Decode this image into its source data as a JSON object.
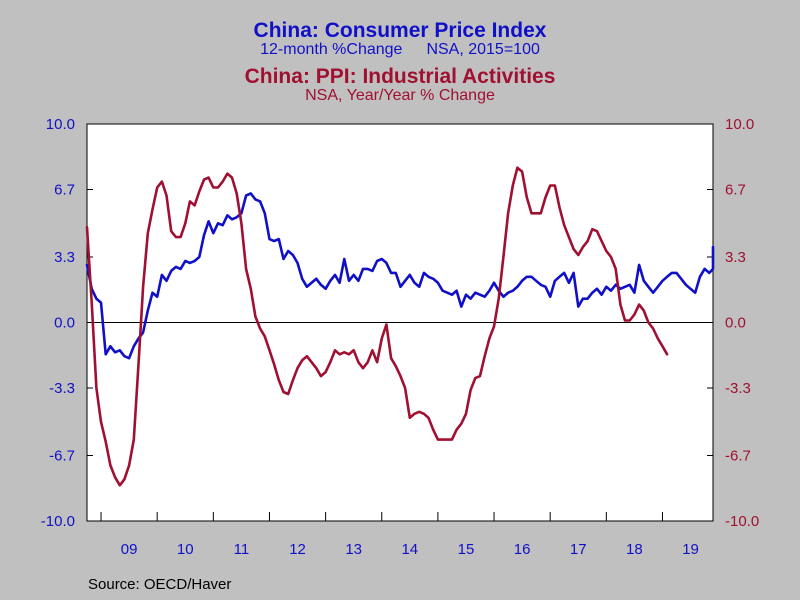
{
  "chart_data": {
    "type": "line",
    "title": "China: Consumer Price Index",
    "subtitle_left": "12-month %Change",
    "subtitle_right": "NSA, 2015=100",
    "title2": "China: PPI: Industrial Activities",
    "subtitle2": "NSA, Year/Year % Change",
    "source": "Source:  OECD/Haver",
    "ylim": [
      -10.0,
      10.0
    ],
    "yticks": [
      "10.0",
      "6.7",
      "3.3",
      "0.0",
      "-3.3",
      "-6.7",
      "-10.0"
    ],
    "ytick_values": [
      10.0,
      6.7,
      3.3,
      0.0,
      -3.3,
      -6.7,
      -10.0
    ],
    "x_categories": [
      "09",
      "10",
      "11",
      "12",
      "13",
      "14",
      "15",
      "16",
      "17",
      "18",
      "19"
    ],
    "x_start": 2008.75,
    "x_end": 2019.9,
    "grid": false,
    "series": [
      {
        "name": "China: Consumer Price Index",
        "color": "#1010c8",
        "axis": "left",
        "x_start": 2008.75,
        "step_months": 1,
        "values": [
          2.9,
          1.7,
          1.2,
          1.0,
          -1.6,
          -1.2,
          -1.5,
          -1.4,
          -1.7,
          -1.8,
          -1.2,
          -0.8,
          -0.5,
          0.6,
          1.5,
          1.3,
          2.4,
          2.1,
          2.6,
          2.8,
          2.7,
          3.1,
          3.0,
          3.1,
          3.3,
          4.4,
          5.1,
          4.5,
          5.0,
          4.9,
          5.4,
          5.2,
          5.3,
          5.5,
          6.4,
          6.5,
          6.2,
          6.1,
          5.5,
          4.2,
          4.1,
          4.2,
          3.2,
          3.6,
          3.4,
          3.0,
          2.2,
          1.8,
          2.0,
          2.2,
          1.9,
          1.7,
          2.1,
          2.4,
          2.0,
          3.2,
          2.1,
          2.4,
          2.1,
          2.7,
          2.7,
          2.6,
          3.1,
          3.2,
          3.0,
          2.5,
          2.5,
          1.8,
          2.1,
          2.4,
          2.0,
          1.8,
          2.5,
          2.3,
          2.2,
          2.0,
          1.6,
          1.5,
          1.4,
          1.6,
          0.8,
          1.4,
          1.2,
          1.5,
          1.4,
          1.3,
          1.6,
          2.0,
          1.6,
          1.3,
          1.5,
          1.6,
          1.8,
          2.1,
          2.3,
          2.3,
          2.1,
          1.9,
          1.8,
          1.3,
          2.1,
          2.3,
          2.5,
          2.0,
          2.5,
          0.8,
          1.2,
          1.2,
          1.5,
          1.7,
          1.4,
          1.8,
          1.6,
          1.9,
          1.7,
          1.8,
          1.9,
          1.5,
          2.9,
          2.1,
          1.8,
          1.5,
          1.8,
          2.1,
          2.3,
          2.5,
          2.5,
          2.2,
          1.9,
          1.7,
          1.5,
          2.3,
          2.7,
          2.5,
          2.7,
          2.8,
          2.8,
          3.0,
          3.8
        ]
      },
      {
        "name": "China: PPI: Industrial Activities",
        "color": "#a01030",
        "axis": "right",
        "x_start": 2008.75,
        "step_months": 1,
        "values": [
          4.8,
          1.0,
          -3.3,
          -5.0,
          -6.0,
          -7.2,
          -7.8,
          -8.2,
          -7.9,
          -7.2,
          -5.9,
          -2.1,
          1.8,
          4.5,
          5.7,
          6.8,
          7.1,
          6.4,
          4.6,
          4.3,
          4.3,
          5.0,
          6.1,
          5.9,
          6.6,
          7.2,
          7.3,
          6.8,
          6.8,
          7.1,
          7.5,
          7.3,
          6.5,
          5.0,
          2.7,
          1.7,
          0.3,
          -0.3,
          -0.7,
          -1.4,
          -2.1,
          -2.9,
          -3.5,
          -3.6,
          -2.9,
          -2.3,
          -1.9,
          -1.7,
          -2.0,
          -2.3,
          -2.7,
          -2.5,
          -2.0,
          -1.4,
          -1.6,
          -1.5,
          -1.6,
          -1.4,
          -2.0,
          -2.3,
          -2.0,
          -1.4,
          -2.0,
          -0.8,
          -0.1,
          -1.8,
          -2.2,
          -2.7,
          -3.3,
          -4.8,
          -4.6,
          -4.5,
          -4.6,
          -4.8,
          -5.4,
          -5.9,
          -5.9,
          -5.9,
          -5.9,
          -5.4,
          -5.1,
          -4.6,
          -3.4,
          -2.8,
          -2.7,
          -1.7,
          -0.8,
          -0.2,
          1.2,
          3.3,
          5.5,
          6.9,
          7.8,
          7.6,
          6.3,
          5.5,
          5.5,
          5.5,
          6.3,
          6.9,
          6.9,
          5.8,
          4.9,
          4.3,
          3.7,
          3.4,
          3.8,
          4.1,
          4.7,
          4.6,
          4.1,
          3.6,
          3.3,
          2.7,
          0.9,
          0.1,
          0.1,
          0.4,
          0.9,
          0.6,
          0.0,
          -0.3,
          -0.8,
          -1.2,
          -1.6
        ]
      }
    ]
  }
}
